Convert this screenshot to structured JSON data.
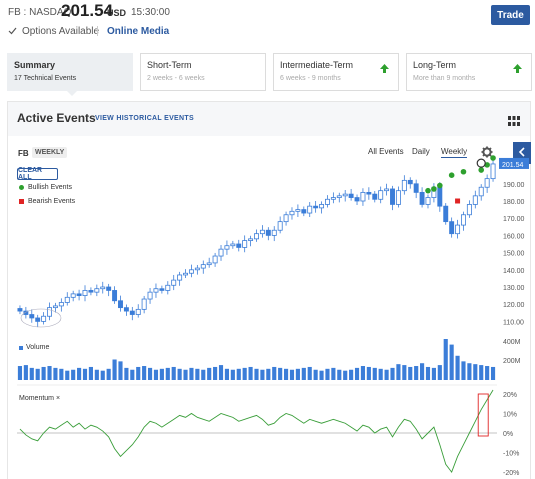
{
  "header": {
    "symbol": "FB : NASDAQ",
    "price": "201.54",
    "currency": "USD",
    "time": "15:30:00",
    "trade_label": "Trade",
    "options_label": "Options Available",
    "online_media_label": "Online Media"
  },
  "tabs": [
    {
      "title": "Summary",
      "subtitle": "17 Technical Events",
      "arrow": false
    },
    {
      "title": "Short-Term",
      "subtitle": "2 weeks - 6 weeks",
      "arrow": false
    },
    {
      "title": "Intermediate-Term",
      "subtitle": "6 weeks - 9 months",
      "arrow": true
    },
    {
      "title": "Long-Term",
      "subtitle": "More than 9 months",
      "arrow": true
    }
  ],
  "events": {
    "title": "Active Events",
    "view_historical": "VIEW HISTORICAL EVENTS"
  },
  "chart": {
    "symbol": "FB",
    "period_tag": "WEEKLY",
    "ranges": [
      "All Events",
      "Daily",
      "Weekly"
    ],
    "selected_range": "Weekly",
    "clear_all": "CLEAR ALL",
    "legend": {
      "bullish": "Bullish Events",
      "bearish": "Bearish Events"
    },
    "volume_label": "Volume",
    "momentum_label": "Momentum ×",
    "price_flag": "201.54",
    "colors": {
      "up": "#3b7dd8",
      "bullish": "#2ea02e",
      "bearish": "#e02424",
      "momentum_line": "#3a9e3a",
      "accent": "#2c5aa0"
    }
  },
  "chart_data": {
    "type": "candlestick",
    "price_axis": {
      "ticks": [
        110.0,
        120.0,
        130.0,
        140.0,
        150.0,
        160.0,
        170.0,
        180.0,
        190.0
      ],
      "range": [
        105,
        205
      ]
    },
    "volume_axis": {
      "ticks": [
        "400M",
        "200M"
      ]
    },
    "momentum_axis": {
      "ticks": [
        "20%",
        "10%",
        "0%",
        "-10%",
        "-20%"
      ]
    },
    "last_price": 201.54,
    "close": [
      116,
      114,
      112,
      110,
      113,
      118,
      119,
      121,
      124,
      126,
      125,
      128,
      127,
      129,
      130,
      128,
      122,
      118,
      116,
      114,
      117,
      123,
      127,
      129,
      128,
      131,
      134,
      137,
      138,
      140,
      141,
      143,
      144,
      148,
      152,
      154,
      155,
      153,
      157,
      158,
      161,
      163,
      160,
      163,
      168,
      172,
      174,
      175,
      173,
      177,
      176,
      178,
      181,
      182,
      183,
      184,
      182,
      180,
      185,
      184,
      181,
      186,
      187,
      178,
      186,
      192,
      190,
      185,
      178,
      182,
      188,
      177,
      168,
      161,
      166,
      172,
      178,
      183,
      188,
      193,
      201.54
    ],
    "volume": [
      150,
      160,
      130,
      120,
      140,
      150,
      130,
      120,
      100,
      110,
      130,
      120,
      140,
      110,
      100,
      120,
      220,
      200,
      130,
      110,
      140,
      150,
      130,
      110,
      120,
      130,
      140,
      120,
      110,
      130,
      120,
      110,
      130,
      140,
      160,
      120,
      110,
      120,
      130,
      140,
      120,
      110,
      120,
      140,
      130,
      120,
      110,
      120,
      130,
      140,
      110,
      100,
      120,
      130,
      110,
      100,
      110,
      130,
      150,
      140,
      130,
      120,
      110,
      130,
      170,
      160,
      140,
      150,
      180,
      140,
      130,
      160,
      440,
      380,
      260,
      200,
      180,
      170,
      160,
      150,
      140
    ],
    "momentum": [
      2,
      -1,
      -3,
      -4,
      0,
      3,
      2,
      4,
      6,
      3,
      5,
      2,
      4,
      3,
      1,
      -2,
      -8,
      -12,
      -9,
      -6,
      -2,
      3,
      6,
      5,
      3,
      5,
      7,
      9,
      8,
      10,
      8,
      7,
      6,
      8,
      10,
      9,
      8,
      6,
      7,
      8,
      9,
      7,
      4,
      5,
      8,
      10,
      9,
      7,
      5,
      7,
      6,
      5,
      6,
      7,
      6,
      5,
      3,
      1,
      4,
      3,
      0,
      2,
      3,
      -2,
      3,
      7,
      6,
      2,
      -3,
      0,
      3,
      -6,
      -16,
      -20,
      -12,
      -6,
      0,
      6,
      12,
      17,
      22
    ]
  }
}
